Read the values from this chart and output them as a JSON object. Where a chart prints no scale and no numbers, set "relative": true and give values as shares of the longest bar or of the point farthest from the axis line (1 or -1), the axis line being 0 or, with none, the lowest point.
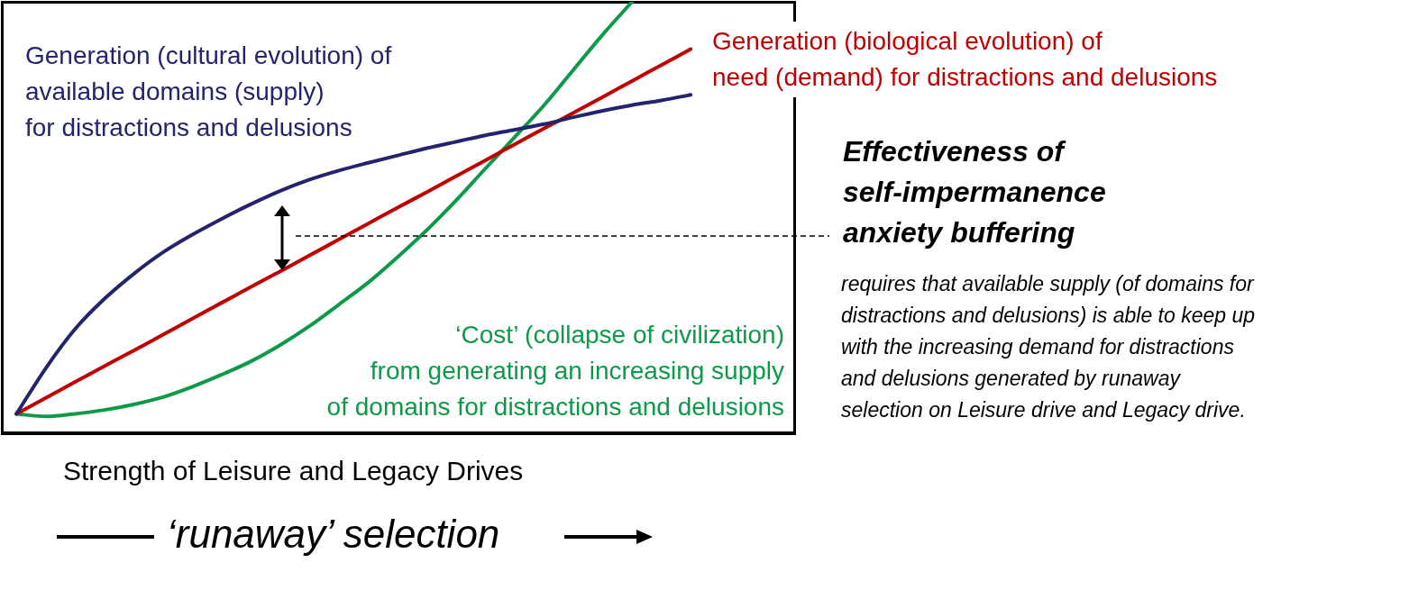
{
  "chart_data": {
    "type": "line",
    "relative": true,
    "marker": "none",
    "xlabel": "Strength of Leisure and Legacy Drives",
    "categories": [
      null,
      null,
      null,
      null,
      null,
      null,
      null,
      null,
      null,
      null,
      null,
      null,
      null,
      null,
      null,
      null,
      null,
      null,
      null,
      null,
      null,
      null,
      null,
      null,
      null,
      null,
      null
    ],
    "series": [
      {
        "name": "Generation (cultural evolution) of\navailable domains (supply)\nfor distractions and delusions",
        "color": "#24246e",
        "values": [
          0.043,
          0.149,
          0.24,
          0.31,
          0.368,
          0.418,
          0.459,
          0.496,
          0.53,
          0.561,
          0.587,
          0.608,
          0.626,
          0.643,
          0.66,
          0.675,
          0.69,
          0.703,
          0.716,
          0.732,
          0.747,
          0.76,
          0.771,
          0.784,
          null,
          null,
          null
        ]
      },
      {
        "name": "Generation (biological evolution) of\nneed (demand) for distractions and delusions",
        "color": "#c00000",
        "values": [
          0.043,
          0.08,
          0.117,
          0.154,
          0.19,
          0.227,
          0.264,
          0.301,
          0.338,
          0.374,
          0.411,
          0.448,
          0.485,
          0.522,
          0.558,
          0.595,
          0.632,
          0.669,
          0.706,
          0.742,
          0.779,
          0.816,
          0.853,
          0.89,
          null,
          null,
          null
        ]
      },
      {
        "name": "‘Cost’ (collapse of civilization)\nfrom generating an increasing supply\nof domains for distractions and delusions",
        "color": "#0d9a48",
        "values": [
          0.043,
          0.037,
          0.043,
          0.052,
          0.065,
          0.082,
          0.106,
          0.134,
          0.165,
          0.203,
          0.247,
          0.297,
          0.348,
          0.407,
          0.47,
          0.539,
          0.613,
          0.686,
          0.76,
          0.842,
          0.924,
          1.0,
          null,
          null,
          null,
          null,
          null
        ]
      }
    ],
    "annotations": [
      "Effectiveness of\nself-impermanence\nanxiety buffering",
      "requires that available supply (of domains for\ndistractions and delusions) is able to keep up\nwith the increasing demand for distractions\nand delusions generated by runaway\nselection on Leisure drive and Legacy drive.",
      "‘runaway’ selection"
    ]
  }
}
